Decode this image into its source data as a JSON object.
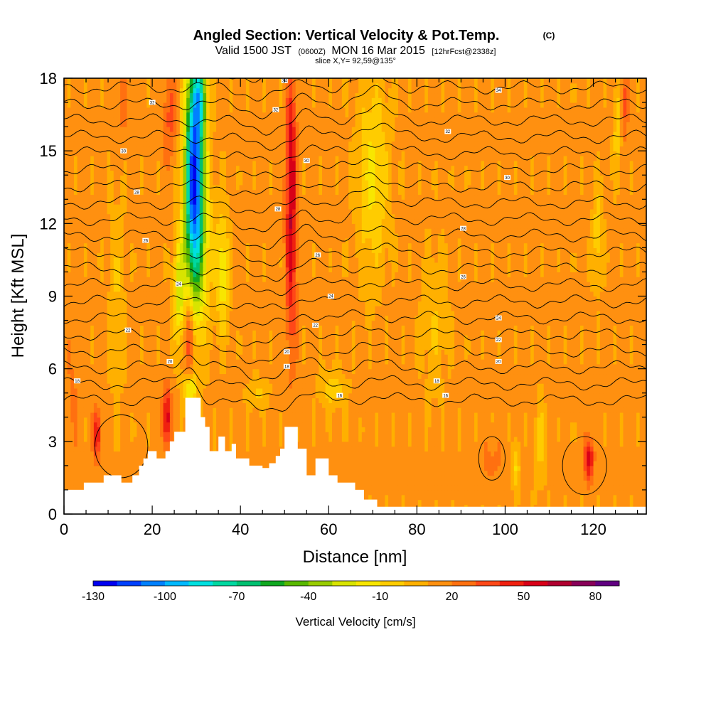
{
  "chart_data": {
    "type": "heatmap",
    "title": "Angled Section: Vertical Velocity & Pot.Temp.",
    "title_mark": "(C)",
    "subtitle": {
      "prefix": "Valid 1500 JST",
      "utc": "(0600Z)",
      "date": "MON 16 Mar 2015",
      "forecast": "[12hrFcst@2338z]"
    },
    "slice_label": "slice X,Y= 92,59@135°",
    "xlabel": "Distance [nm]",
    "ylabel": "Height [Kft MSL]",
    "xlim": [
      0,
      132
    ],
    "ylim": [
      0,
      18
    ],
    "xticks": [
      "0",
      "20",
      "40",
      "60",
      "80",
      "100",
      "120"
    ],
    "yticks": [
      "0",
      "3",
      "6",
      "9",
      "12",
      "15",
      "18"
    ],
    "colorbar": {
      "label": "Vertical Velocity [cm/s]",
      "ticks": [
        "-130",
        "-100",
        "-70",
        "-40",
        "-10",
        "20",
        "50",
        "80"
      ],
      "range": [
        -130,
        90
      ],
      "step": 10,
      "colors": [
        "#0000f0",
        "#0040ff",
        "#0080ff",
        "#00b8ff",
        "#00e0e0",
        "#00d8a0",
        "#00c070",
        "#10a820",
        "#58b800",
        "#98cc00",
        "#d8e400",
        "#f8e600",
        "#ffcc00",
        "#ffb000",
        "#ff9010",
        "#ff7010",
        "#ff4818",
        "#f02010",
        "#d80018",
        "#b00030",
        "#880058",
        "#600080"
      ]
    },
    "terrain": [
      [
        0,
        1.0
      ],
      [
        4.5,
        1.0
      ],
      [
        4.5,
        1.3
      ],
      [
        9,
        1.3
      ],
      [
        9,
        1.6
      ],
      [
        13,
        1.6
      ],
      [
        13,
        1.3
      ],
      [
        15.5,
        1.3
      ],
      [
        15.5,
        1.6
      ],
      [
        17,
        1.6
      ],
      [
        17,
        2.0
      ],
      [
        18,
        2.0
      ],
      [
        18,
        2.3
      ],
      [
        19,
        2.3
      ],
      [
        19,
        2.6
      ],
      [
        21,
        2.6
      ],
      [
        21,
        2.3
      ],
      [
        23,
        2.3
      ],
      [
        23,
        2.6
      ],
      [
        24,
        2.6
      ],
      [
        24,
        3.0
      ],
      [
        25,
        3.0
      ],
      [
        25,
        3.4
      ],
      [
        27.5,
        3.4
      ],
      [
        27.5,
        4.8
      ],
      [
        31,
        4.8
      ],
      [
        31,
        4.0
      ],
      [
        32,
        4.0
      ],
      [
        32,
        3.6
      ],
      [
        33,
        3.6
      ],
      [
        33,
        2.6
      ],
      [
        35,
        2.6
      ],
      [
        35,
        3.2
      ],
      [
        36.5,
        3.2
      ],
      [
        36.5,
        2.6
      ],
      [
        38,
        2.6
      ],
      [
        38,
        2.9
      ],
      [
        39,
        2.9
      ],
      [
        39,
        2.3
      ],
      [
        42,
        2.3
      ],
      [
        42,
        2.0
      ],
      [
        45,
        2.0
      ],
      [
        45,
        1.9
      ],
      [
        46.5,
        1.9
      ],
      [
        46.5,
        2.1
      ],
      [
        48,
        2.1
      ],
      [
        48,
        2.4
      ],
      [
        49,
        2.4
      ],
      [
        49,
        2.7
      ],
      [
        50,
        2.7
      ],
      [
        50,
        3.6
      ],
      [
        53,
        3.6
      ],
      [
        53,
        2.7
      ],
      [
        55,
        2.7
      ],
      [
        55,
        1.6
      ],
      [
        57,
        1.6
      ],
      [
        57,
        2.3
      ],
      [
        60,
        2.3
      ],
      [
        60,
        1.6
      ],
      [
        62,
        1.6
      ],
      [
        62,
        1.3
      ],
      [
        66,
        1.3
      ],
      [
        66,
        1.0
      ],
      [
        68,
        1.0
      ],
      [
        68,
        0.6
      ],
      [
        71,
        0.6
      ],
      [
        71,
        0.3
      ],
      [
        132,
        0.3
      ]
    ],
    "field": {
      "base": 13,
      "features": [
        {
          "x": 29.5,
          "y": 14.6,
          "wx": 2.0,
          "wy": 4.5,
          "v": -110
        },
        {
          "x": 30,
          "y": 11.5,
          "wx": 3.0,
          "wy": 4.0,
          "v": -45
        },
        {
          "x": 31,
          "y": 17.2,
          "wx": 1.5,
          "wy": 1.5,
          "v": -50
        },
        {
          "x": 26,
          "y": 9.2,
          "wx": 1.2,
          "wy": 2.0,
          "v": -35
        },
        {
          "x": 36,
          "y": 10.0,
          "wx": 1.5,
          "wy": 2.5,
          "v": -30
        },
        {
          "x": 28.5,
          "y": 5.2,
          "wx": 1.5,
          "wy": 0.6,
          "v": -40
        },
        {
          "x": 70,
          "y": 14.0,
          "wx": 3.5,
          "wy": 4.0,
          "v": -25
        },
        {
          "x": 121,
          "y": 11.5,
          "wx": 1.2,
          "wy": 2.0,
          "v": -20
        },
        {
          "x": 125.5,
          "y": 16.0,
          "wx": 1.0,
          "wy": 2.0,
          "v": -20
        },
        {
          "x": 102.5,
          "y": 2.0,
          "wx": 0.8,
          "wy": 1.0,
          "v": -25
        },
        {
          "x": 51.5,
          "y": 12.0,
          "wx": 1.2,
          "wy": 5.0,
          "v": 45
        },
        {
          "x": 51.5,
          "y": 15.5,
          "wx": 1.0,
          "wy": 2.5,
          "v": 15
        },
        {
          "x": 24,
          "y": 16.5,
          "wx": 1.5,
          "wy": 2.0,
          "v": 20
        },
        {
          "x": 28.5,
          "y": 7.3,
          "wx": 1.0,
          "wy": 1.8,
          "v": 40
        },
        {
          "x": 23.3,
          "y": 4.0,
          "wx": 1.0,
          "wy": 1.2,
          "v": 45
        },
        {
          "x": 7.5,
          "y": 3.3,
          "wx": 0.9,
          "wy": 1.0,
          "v": 40
        },
        {
          "x": 119,
          "y": 2.3,
          "wx": 1.0,
          "wy": 0.9,
          "v": 45
        },
        {
          "x": 97,
          "y": 2.2,
          "wx": 2.5,
          "wy": 1.0,
          "v": 10
        },
        {
          "x": 127,
          "y": 17.0,
          "wx": 0.8,
          "wy": 1.5,
          "v": 25
        },
        {
          "x": 13,
          "y": 17.0,
          "wx": 1.5,
          "wy": 1.5,
          "v": 12
        },
        {
          "x": 61,
          "y": 5.2,
          "wx": 3.0,
          "wy": 0.8,
          "v": -18
        },
        {
          "x": 44,
          "y": 5.0,
          "wx": 2.5,
          "wy": 0.6,
          "v": -15
        },
        {
          "x": 84,
          "y": 8.0,
          "wx": 3.0,
          "wy": 3.0,
          "v": -12
        },
        {
          "x": 108,
          "y": 3.0,
          "wx": 1.2,
          "wy": 2.0,
          "v": -15
        },
        {
          "x": 12,
          "y": 9.0,
          "wx": 2.0,
          "wy": 4.0,
          "v": -12
        },
        {
          "x": 2,
          "y": 5.0,
          "wx": 1.5,
          "wy": 3.0,
          "v": 8
        }
      ]
    },
    "contour_labels": [
      {
        "x": 13.5,
        "y": 15.0,
        "text": "30"
      },
      {
        "x": 20,
        "y": 17.0,
        "text": "32"
      },
      {
        "x": 16.5,
        "y": 13.3,
        "text": "28"
      },
      {
        "x": 18.5,
        "y": 11.3,
        "text": "26"
      },
      {
        "x": 26,
        "y": 9.5,
        "text": "24"
      },
      {
        "x": 14.5,
        "y": 7.6,
        "text": "22"
      },
      {
        "x": 24,
        "y": 6.3,
        "text": "20"
      },
      {
        "x": 3,
        "y": 5.5,
        "text": "18"
      },
      {
        "x": 50,
        "y": 17.9,
        "text": "34"
      },
      {
        "x": 48,
        "y": 16.7,
        "text": "32"
      },
      {
        "x": 55,
        "y": 14.6,
        "text": "30"
      },
      {
        "x": 48.5,
        "y": 12.6,
        "text": "28"
      },
      {
        "x": 57.5,
        "y": 10.7,
        "text": "26"
      },
      {
        "x": 60.5,
        "y": 9.0,
        "text": "24"
      },
      {
        "x": 57,
        "y": 7.8,
        "text": "22"
      },
      {
        "x": 50.5,
        "y": 6.7,
        "text": "20"
      },
      {
        "x": 50.5,
        "y": 6.1,
        "text": "18"
      },
      {
        "x": 62.5,
        "y": 4.9,
        "text": "16"
      },
      {
        "x": 98.5,
        "y": 17.5,
        "text": "34"
      },
      {
        "x": 87,
        "y": 15.8,
        "text": "32"
      },
      {
        "x": 100.5,
        "y": 13.9,
        "text": "30"
      },
      {
        "x": 90.5,
        "y": 11.8,
        "text": "28"
      },
      {
        "x": 90.5,
        "y": 9.8,
        "text": "26"
      },
      {
        "x": 98.5,
        "y": 8.1,
        "text": "24"
      },
      {
        "x": 98.5,
        "y": 7.2,
        "text": "22"
      },
      {
        "x": 98.5,
        "y": 6.3,
        "text": "20"
      },
      {
        "x": 84.5,
        "y": 5.5,
        "text": "18"
      },
      {
        "x": 86.5,
        "y": 4.9,
        "text": "16"
      }
    ]
  }
}
